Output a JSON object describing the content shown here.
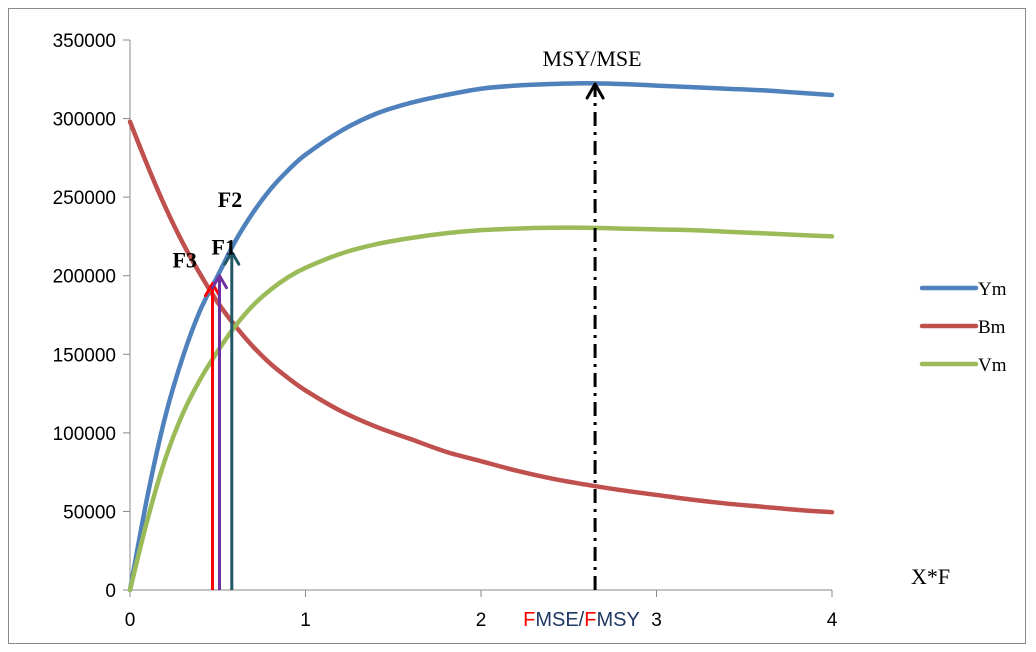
{
  "chart_data": {
    "type": "line",
    "title": "",
    "xlabel": "X*F",
    "ylabel": "",
    "xlim": [
      0,
      4
    ],
    "ylim": [
      0,
      350000
    ],
    "x_ticks": [
      0,
      1,
      2,
      3,
      4
    ],
    "y_ticks": [
      0,
      50000,
      100000,
      150000,
      200000,
      250000,
      300000,
      350000
    ],
    "grid": "none",
    "legend_position": "right",
    "series": [
      {
        "name": "Ym",
        "color": "#4f81bd",
        "x": [
          0,
          0.1,
          0.2,
          0.3,
          0.4,
          0.5,
          0.6,
          0.7,
          0.8,
          0.9,
          1.0,
          1.2,
          1.4,
          1.6,
          1.8,
          2.0,
          2.2,
          2.4,
          2.6,
          2.8,
          3.0,
          3.2,
          3.4,
          3.6,
          3.8,
          4.0
        ],
        "values": [
          0,
          60000,
          110000,
          148000,
          178000,
          200000,
          222000,
          240000,
          255000,
          267000,
          277000,
          292000,
          303000,
          310000,
          315000,
          319000,
          321000,
          322000,
          322500,
          322000,
          321000,
          320000,
          319000,
          318000,
          316500,
          315000
        ]
      },
      {
        "name": "Bm",
        "color": "#c0504d",
        "x": [
          0,
          0.1,
          0.2,
          0.3,
          0.4,
          0.5,
          0.6,
          0.7,
          0.8,
          0.9,
          1.0,
          1.2,
          1.4,
          1.6,
          1.8,
          2.0,
          2.2,
          2.4,
          2.6,
          2.8,
          3.0,
          3.2,
          3.4,
          3.6,
          3.8,
          4.0
        ],
        "values": [
          298000,
          270000,
          244000,
          221000,
          201000,
          183000,
          168000,
          155000,
          144000,
          135000,
          127000,
          114000,
          104000,
          96000,
          88000,
          82000,
          76000,
          71000,
          67000,
          63500,
          60500,
          57500,
          55000,
          53000,
          51000,
          49500
        ]
      },
      {
        "name": "Vm",
        "color": "#9bbb59",
        "x": [
          0,
          0.1,
          0.2,
          0.3,
          0.4,
          0.5,
          0.6,
          0.7,
          0.8,
          0.9,
          1.0,
          1.2,
          1.4,
          1.6,
          1.8,
          2.0,
          2.2,
          2.4,
          2.6,
          2.8,
          3.0,
          3.2,
          3.4,
          3.6,
          3.8,
          4.0
        ],
        "values": [
          0,
          45000,
          83000,
          112000,
          134000,
          152000,
          168000,
          181000,
          191000,
          199000,
          205000,
          214000,
          220000,
          224000,
          227000,
          229000,
          230000,
          230500,
          230500,
          230000,
          229500,
          229000,
          228000,
          227000,
          226000,
          225000
        ]
      }
    ],
    "reference_arrows": [
      {
        "label": "F3",
        "x": 0.47,
        "y_top": 195000,
        "color": "#ff0000",
        "style": "solid"
      },
      {
        "label": "F1",
        "x": 0.51,
        "y_top": 200000,
        "color": "#7030a0",
        "style": "solid"
      },
      {
        "label": "F2",
        "x": 0.58,
        "y_top": 215000,
        "color": "#215868",
        "style": "solid"
      },
      {
        "label": "MSY/MSE",
        "x": 2.65,
        "y_top": 322000,
        "color": "#000000",
        "style": "dashdot"
      }
    ],
    "x_annotation": {
      "parts": [
        {
          "text": "F",
          "color": "#ff0000"
        },
        {
          "text": "MSE/",
          "color": "#1f3864"
        },
        {
          "text": "F",
          "color": "#ff0000"
        },
        {
          "text": "MSY",
          "color": "#1f3864"
        }
      ],
      "x": 2.24
    }
  }
}
